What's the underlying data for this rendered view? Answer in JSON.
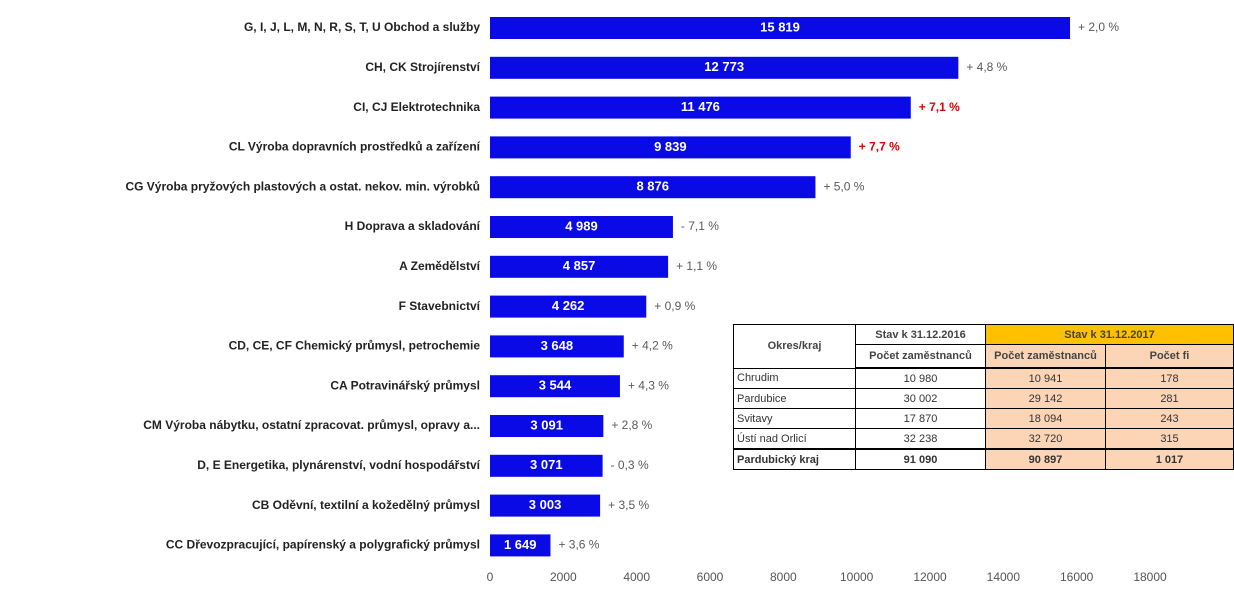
{
  "chart_data": {
    "type": "barh",
    "categories": [
      "G, I, J, L, M, N, R, S, T, U Obchod a služby",
      "CH, CK Strojírenství",
      "CI, CJ Elektrotechnika",
      "CL Výroba dopravních prostředků a zařízení",
      "CG Výroba pryžových plastových a ostat. nekov. min. výrobků",
      "H Doprava a skladování",
      "A Zemědělství",
      "F Stavebnictví",
      "CD, CE, CF Chemický průmysl, petrochemie",
      "CA Potravinářský průmysl",
      "CM Výroba nábytku, ostatní zpracovat. průmysl, opravy a...",
      "D, E Energetika, plynárenství, vodní hospodářství",
      "CB Oděvní, textilní a kožedělný průmysl",
      "CC Dřevozpracující, papírenský a polygrafický průmysl"
    ],
    "values": [
      15819,
      12773,
      11476,
      9839,
      8876,
      4989,
      4857,
      4262,
      3648,
      3544,
      3091,
      3071,
      3003,
      1649
    ],
    "value_labels": [
      "15 819",
      "12 773",
      "11 476",
      "9 839",
      "8 876",
      "4 989",
      "4 857",
      "4 262",
      "3 648",
      "3 544",
      "3 091",
      "3 071",
      "3 003",
      "1 649"
    ],
    "annotations": [
      {
        "text": "+ 2,0 %",
        "color": "#595959"
      },
      {
        "text": "+ 4,8 %",
        "color": "#595959"
      },
      {
        "text": "+ 7,1 %",
        "color": "#e00000",
        "bold": true
      },
      {
        "text": "+ 7,7 %",
        "color": "#e00000",
        "bold": true
      },
      {
        "text": "+ 5,0 %",
        "color": "#595959"
      },
      {
        "text": "- 7,1 %",
        "color": "#595959"
      },
      {
        "text": "+ 1,1 %",
        "color": "#595959"
      },
      {
        "text": "+ 0,9 %",
        "color": "#595959"
      },
      {
        "text": "+ 4,2 %",
        "color": "#595959"
      },
      {
        "text": "+ 4,3 %",
        "color": "#595959"
      },
      {
        "text": "+ 2,8 %",
        "color": "#595959"
      },
      {
        "text": "- 0,3 %",
        "color": "#595959"
      },
      {
        "text": "+ 3,5 %",
        "color": "#595959"
      },
      {
        "text": "+ 3,6 %",
        "color": "#595959"
      }
    ],
    "color": "#0a0ae6",
    "xlim": [
      0,
      18000
    ],
    "xticks": [
      0,
      2000,
      4000,
      6000,
      8000,
      10000,
      12000,
      14000,
      16000,
      18000
    ]
  },
  "table": {
    "region": "Okres/kraj",
    "period_2016": "Stav k 31.12.2016",
    "period_2017": "Stav k 31.12.2017",
    "columns": [
      "Počet zaměstnanců",
      "Počet zaměstnanců",
      "Počet fi"
    ],
    "rows": [
      [
        "Chrudim",
        "10 980",
        "10 941",
        "178"
      ],
      [
        "Pardubice",
        "30 002",
        "29 142",
        "281"
      ],
      [
        "Svitavy",
        "17 870",
        "18 094",
        "243"
      ],
      [
        "Ústí nad Orlicí",
        "32 238",
        "32 720",
        "315"
      ]
    ],
    "total": [
      "Pardubický kraj",
      "91 090",
      "90 897",
      "1 017"
    ]
  }
}
